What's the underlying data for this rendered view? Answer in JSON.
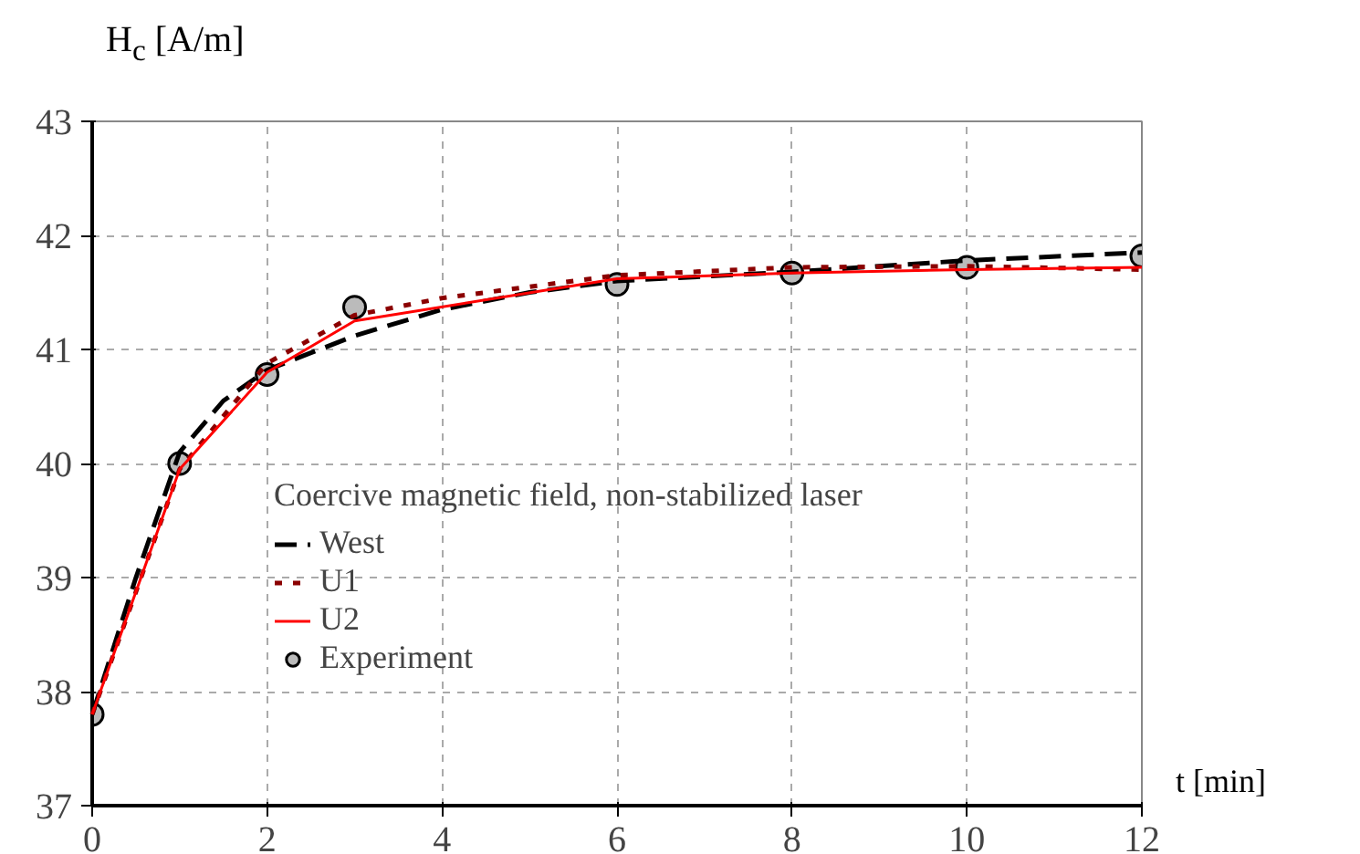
{
  "chart_data": {
    "type": "line",
    "xlabel": "t [min]",
    "ylabel": "H$_{c}$ [A/m]",
    "legend_title": "Coercive magnetic field, non-stabilized laser",
    "xlim": [
      0,
      12
    ],
    "ylim": [
      37,
      43
    ],
    "xticks": [
      0,
      2,
      4,
      6,
      8,
      10,
      12
    ],
    "yticks": [
      37,
      38,
      39,
      40,
      41,
      42,
      43
    ],
    "grid": true,
    "legend": "left",
    "series": [
      {
        "name": "West",
        "color": "#000000",
        "line_style": "dashed",
        "marker": "none",
        "x": [
          0,
          0.5,
          1,
          1.5,
          2,
          3,
          4,
          5,
          6,
          8,
          10,
          12
        ],
        "values": [
          37.8,
          39.0,
          40.1,
          40.55,
          40.82,
          41.12,
          41.35,
          41.5,
          41.6,
          41.68,
          41.78,
          41.85
        ]
      },
      {
        "name": "U1",
        "color": "#8b0000",
        "line_style": "dotted",
        "marker": "none",
        "x": [
          0,
          1,
          2,
          3,
          4,
          5,
          6,
          8,
          10,
          12
        ],
        "values": [
          37.8,
          39.95,
          40.88,
          41.3,
          41.45,
          41.55,
          41.65,
          41.72,
          41.73,
          41.7
        ]
      },
      {
        "name": "U2",
        "color": "#ff0000",
        "line_style": "solid",
        "marker": "none",
        "x": [
          0,
          1,
          2,
          3,
          6,
          8,
          10,
          12
        ],
        "values": [
          37.8,
          39.95,
          40.8,
          41.25,
          41.62,
          41.67,
          41.7,
          41.72
        ]
      },
      {
        "name": "Experiment",
        "type": "scatter",
        "color": "#000000",
        "marker": "circle",
        "x": [
          0,
          1,
          2,
          3,
          6,
          8,
          10,
          12
        ],
        "values": [
          37.8,
          40.0,
          40.78,
          41.37,
          41.57,
          41.67,
          41.72,
          41.82
        ]
      }
    ]
  }
}
